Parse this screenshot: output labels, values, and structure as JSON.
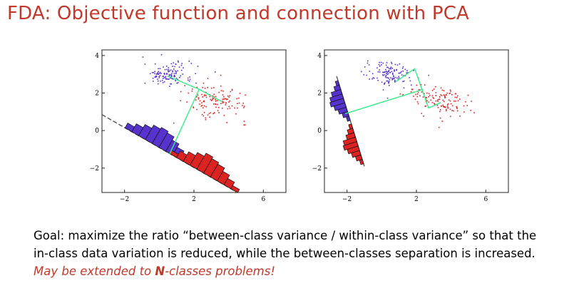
{
  "slide": {
    "title": "FDA: Objective function and connection with PCA"
  },
  "body": {
    "goal_line1": "Goal:  maximize the ratio “between-class variance / within-class variance” so that the",
    "goal_line2": "in-class data variation is reduced, while the between-classes separation is increased.",
    "extension_prefix": "May be extended to ",
    "extension_n": "N",
    "extension_suffix": "-classes problems!"
  },
  "colors": {
    "title": "#c0392b",
    "class1": "#5533cc",
    "class2": "#dd2222",
    "projection_line": "#33ee88"
  },
  "chart_data": [
    {
      "type": "scatter",
      "xlim": [
        -3.3,
        7.3
      ],
      "ylim": [
        -3.3,
        4.3
      ],
      "xticks": [
        "−2",
        "2",
        "6"
      ],
      "yticks": [
        "4",
        "2",
        "0",
        "−2"
      ],
      "series": [
        {
          "color": "#5533cc",
          "center": [
            0.5,
            3.0
          ],
          "spread": [
            1.0,
            0.35
          ]
        },
        {
          "color": "#dd2222",
          "center": [
            3.3,
            1.6
          ],
          "spread": [
            1.3,
            0.5
          ]
        }
      ],
      "projection": "slanted diagonal axis (PCA direction) with histograms",
      "hist1": [
        3,
        5,
        7,
        9,
        10,
        9,
        7,
        5,
        3,
        2
      ],
      "hist2": [
        2,
        4,
        6,
        8,
        10,
        9,
        8,
        6,
        4,
        2
      ],
      "grid": false
    },
    {
      "type": "scatter",
      "xlim": [
        -3.3,
        7.3
      ],
      "ylim": [
        -3.3,
        4.3
      ],
      "xticks": [
        "−2",
        "2",
        "6"
      ],
      "yticks": [
        "4",
        "2",
        "0",
        "−2"
      ],
      "series": [
        {
          "color": "#5533cc",
          "center": [
            0.5,
            3.0
          ],
          "spread": [
            1.0,
            0.35
          ]
        },
        {
          "color": "#dd2222",
          "center": [
            3.3,
            1.6
          ],
          "spread": [
            1.3,
            0.5
          ]
        }
      ],
      "projection": "steep axis (Fisher discriminant direction) with separated histograms",
      "hist1": [
        2,
        4,
        7,
        9,
        10,
        8,
        6,
        4,
        2
      ],
      "hist2": [
        2,
        4,
        6,
        9,
        10,
        8,
        6,
        4,
        2
      ],
      "grid": false
    }
  ]
}
